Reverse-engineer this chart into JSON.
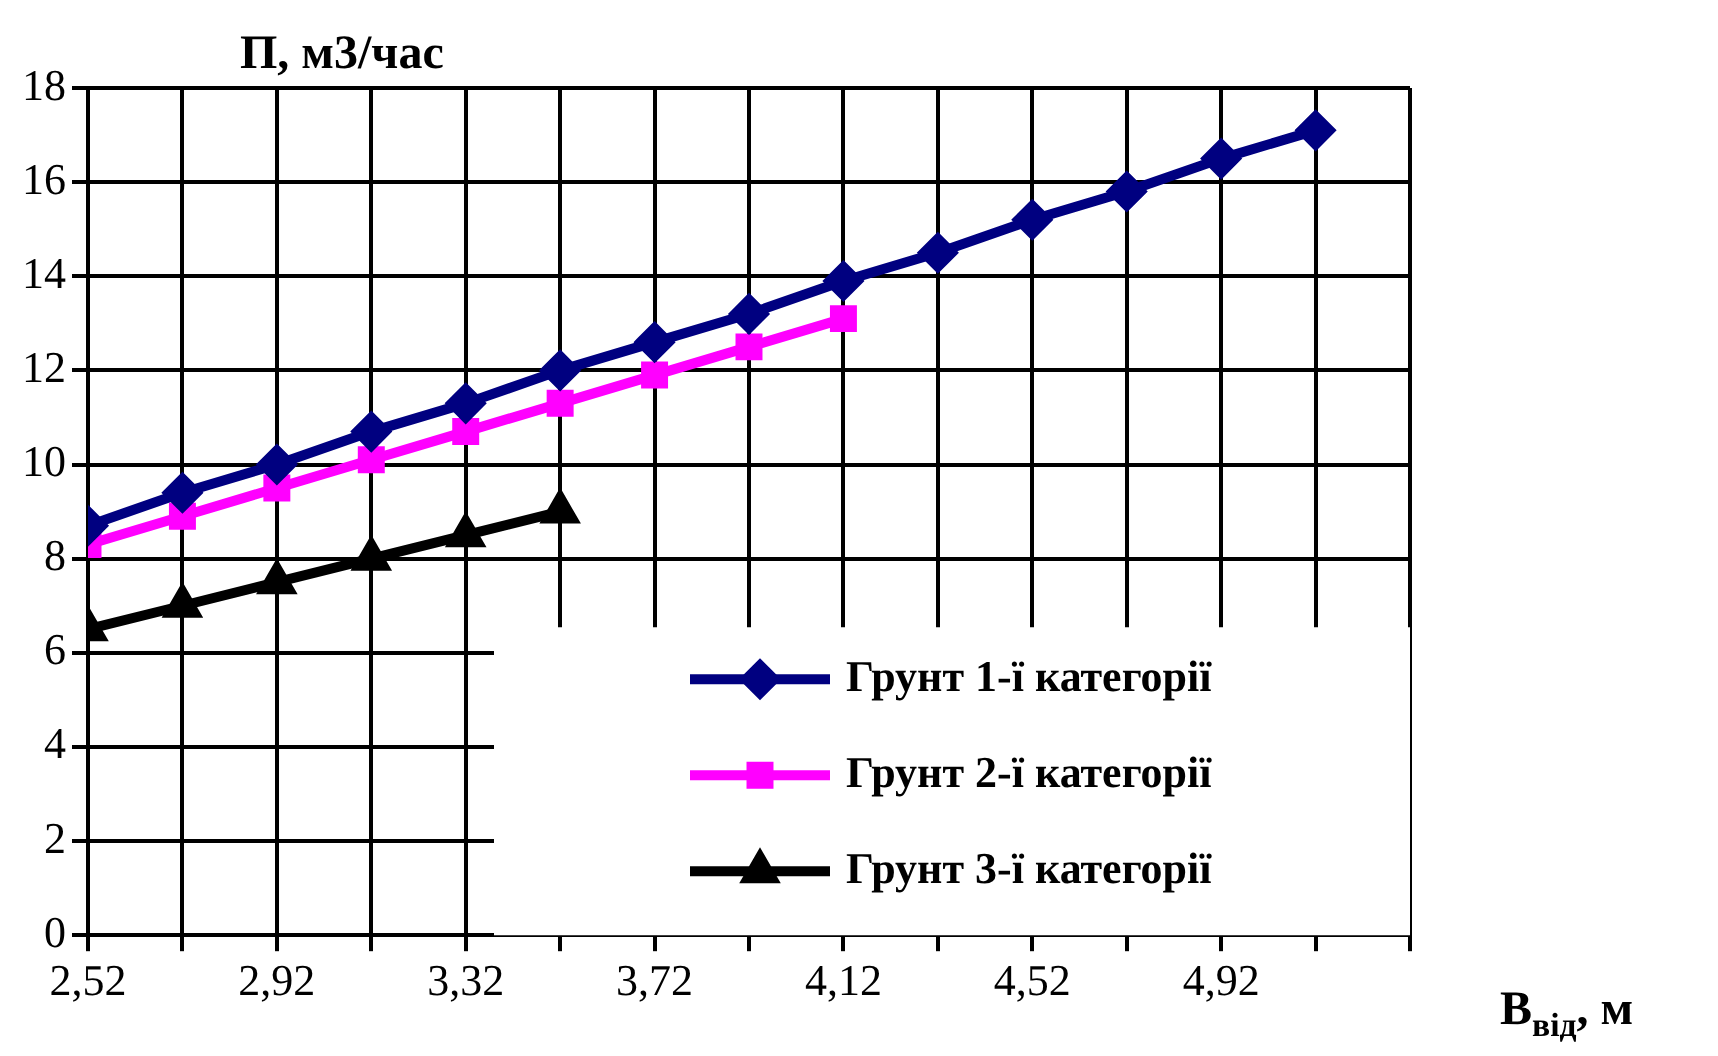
{
  "chart_data": {
    "type": "line",
    "xlabel": "B$_{від}$, м",
    "ylabel": "П, м3/час",
    "xlim": [
      2.52,
      5.32
    ],
    "ylim": [
      0,
      18
    ],
    "xticks": [
      {
        "value": 2.52,
        "label": "2,52"
      },
      {
        "value": 2.72,
        "label": null
      },
      {
        "value": 2.92,
        "label": "2,92"
      },
      {
        "value": 3.12,
        "label": null
      },
      {
        "value": 3.32,
        "label": "3,32"
      },
      {
        "value": 3.52,
        "label": null
      },
      {
        "value": 3.72,
        "label": "3,72"
      },
      {
        "value": 3.92,
        "label": null
      },
      {
        "value": 4.12,
        "label": "4,12"
      },
      {
        "value": 4.32,
        "label": null
      },
      {
        "value": 4.52,
        "label": "4,52"
      },
      {
        "value": 4.72,
        "label": null
      },
      {
        "value": 4.92,
        "label": "4,92"
      },
      {
        "value": 5.12,
        "label": null
      },
      {
        "value": 5.32,
        "label": null
      }
    ],
    "yticks": [
      0,
      2,
      4,
      6,
      8,
      10,
      12,
      14,
      16,
      18
    ],
    "grid": true,
    "legend": "bottom right",
    "line_style": "solid",
    "series": [
      {
        "name": "Грунт 1-ї категорії",
        "color": "#000080",
        "marker": "diamond",
        "x": [
          2.52,
          2.72,
          2.92,
          3.12,
          3.32,
          3.52,
          3.72,
          3.92,
          4.12,
          4.32,
          4.52,
          4.72,
          4.92,
          5.12
        ],
        "values": [
          8.7,
          9.4,
          10.0,
          10.7,
          11.3,
          12.0,
          12.6,
          13.2,
          13.9,
          14.5,
          15.2,
          15.8,
          16.5,
          17.1
        ]
      },
      {
        "name": "Грунт 2-ї категорії",
        "color": "#ff00ff",
        "marker": "square",
        "x": [
          2.52,
          2.72,
          2.92,
          3.12,
          3.32,
          3.52,
          3.72,
          3.92,
          4.12
        ],
        "values": [
          8.3,
          8.9,
          9.5,
          10.1,
          10.7,
          11.3,
          11.9,
          12.5,
          13.1
        ]
      },
      {
        "name": "Грунт 3-ї категорії",
        "color": "#000000",
        "marker": "triangle",
        "x": [
          2.52,
          2.72,
          2.92,
          3.12,
          3.32,
          3.52
        ],
        "values": [
          6.5,
          7.0,
          7.5,
          8.0,
          8.5,
          9.0
        ]
      }
    ]
  }
}
